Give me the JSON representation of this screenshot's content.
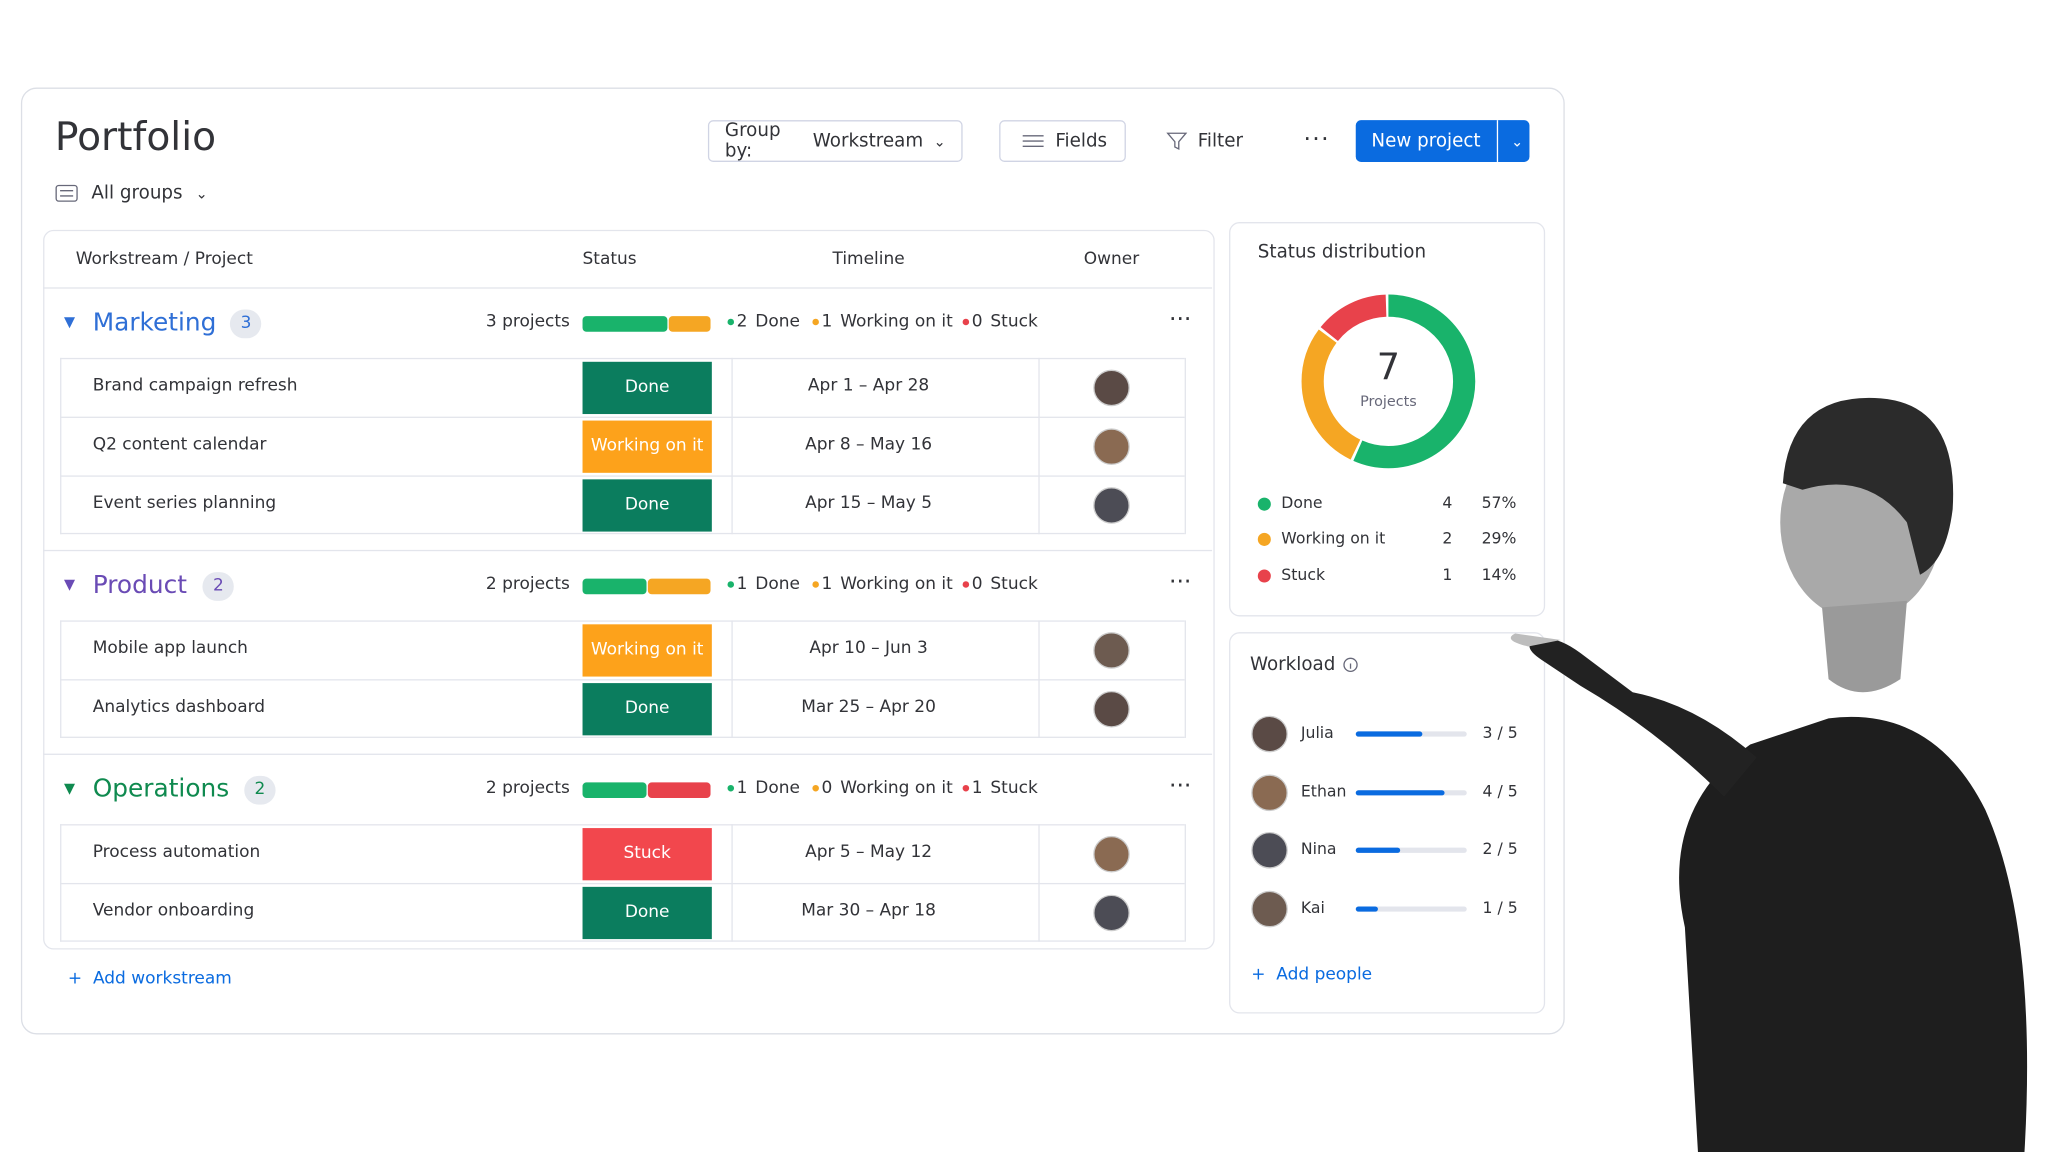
{
  "header": {
    "title": "Portfolio",
    "view": "All groups",
    "group_by_label": "Group by:",
    "group_by_value": "Workstream",
    "fields": "Fields",
    "filter": "Filter",
    "new_project": "New project"
  },
  "status_styles": {
    "Done": "#0b7d5e",
    "Working on it": "#fda21b",
    "Stuck": "#f2474d"
  },
  "table": {
    "columns": [
      "Workstream / Project",
      "Status",
      "Timeline",
      "Owner"
    ],
    "groups": [
      {
        "name": "Marketing",
        "count": 3,
        "projects_label": "3 projects",
        "color": "#2f6fd6",
        "summary": [
          {
            "count": 2,
            "label": "Done"
          },
          {
            "count": 1,
            "label": "Working on it"
          },
          {
            "count": 0,
            "label": "Stuck"
          }
        ],
        "rows": [
          {
            "name": "Brand campaign refresh",
            "status": "Done",
            "timeline": "Apr 1 – Apr 28"
          },
          {
            "name": "Q2 content calendar",
            "status": "Working on it",
            "timeline": "Apr 8 – May 16"
          },
          {
            "name": "Event series planning",
            "status": "Done",
            "timeline": "Apr 15 – May 5"
          }
        ]
      },
      {
        "name": "Product",
        "count": 2,
        "projects_label": "2 projects",
        "color": "#6a4bb5",
        "summary": [
          {
            "count": 1,
            "label": "Done"
          },
          {
            "count": 1,
            "label": "Working on it"
          },
          {
            "count": 0,
            "label": "Stuck"
          }
        ],
        "rows": [
          {
            "name": "Mobile app launch",
            "status": "Working on it",
            "timeline": "Apr 10 – Jun 3"
          },
          {
            "name": "Analytics dashboard",
            "status": "Done",
            "timeline": "Mar 25 – Apr 20"
          }
        ]
      },
      {
        "name": "Operations",
        "count": 2,
        "projects_label": "2 projects",
        "color": "#0f8a4f",
        "summary": [
          {
            "count": 1,
            "label": "Done"
          },
          {
            "count": 0,
            "label": "Working on it"
          },
          {
            "count": 1,
            "label": "Stuck"
          }
        ],
        "rows": [
          {
            "name": "Process automation",
            "status": "Stuck",
            "timeline": "Apr 5 – May 12"
          },
          {
            "name": "Vendor onboarding",
            "status": "Done",
            "timeline": "Mar 30 – Apr 18"
          }
        ]
      }
    ],
    "add": "Add workstream"
  },
  "status_distribution": {
    "title": "Status distribution",
    "total": 7,
    "total_label": "Projects",
    "items": [
      {
        "label": "Done",
        "count": 4,
        "percent": "57%",
        "color": "#19b36b"
      },
      {
        "label": "Working on it",
        "count": 2,
        "percent": "29%",
        "color": "#f5a623"
      },
      {
        "label": "Stuck",
        "count": 1,
        "percent": "14%",
        "color": "#e8424b"
      }
    ]
  },
  "workload": {
    "title": "Workload",
    "people": [
      {
        "name": "Julia",
        "load": 3,
        "capacity": 5
      },
      {
        "name": "Ethan",
        "load": 4,
        "capacity": 5
      },
      {
        "name": "Nina",
        "load": 2,
        "capacity": 5
      },
      {
        "name": "Kai",
        "load": 1,
        "capacity": 5
      }
    ],
    "add": "Add people"
  }
}
